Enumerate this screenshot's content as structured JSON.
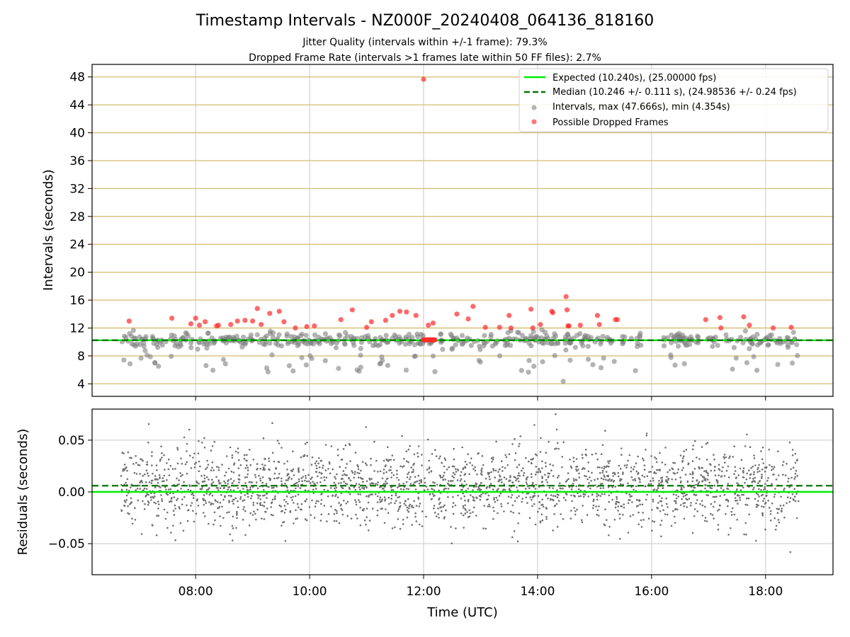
{
  "title": "Timestamp Intervals - NZ000F_20240408_064136_818160",
  "subtitle_lines": [
    "Jitter Quality (intervals within +/-1 frame): 79.3%",
    "Dropped Frame Rate (intervals >1 frames late within 50 FF files): 2.7%"
  ],
  "colors": {
    "expected": "#00ee00",
    "median": "#007700",
    "intervals": "#808080",
    "dropped": "#ff2a2a",
    "grid_y_top": "#d4bb70",
    "grid": "#c8c8c8",
    "residual": "#707070"
  },
  "chart_data": [
    {
      "type": "scatter",
      "name": "intervals",
      "xlabel": "",
      "ylabel": "Intervals (seconds)",
      "xlim": [
        "06:11",
        "19:11"
      ],
      "ylim": [
        2.2,
        49.8
      ],
      "x_ticks": [
        "08:00",
        "10:00",
        "12:00",
        "14:00",
        "16:00",
        "18:00"
      ],
      "y_ticks": [
        4,
        8,
        12,
        16,
        20,
        24,
        28,
        32,
        36,
        40,
        44,
        48
      ],
      "y_tick_labels": [
        "4",
        "8",
        "12",
        "16",
        "20",
        "24",
        "28",
        "32",
        "36",
        "40",
        "44",
        "48"
      ],
      "x_range_data": [
        "06:41",
        "18:35"
      ],
      "grid": true,
      "legend_position": "top-right",
      "legend": [
        "Expected (10.240s), (25.00000 fps)",
        "Median (10.246 +/- 0.111 s), (24.98536 +/- 0.24 fps)",
        "Intervals, max (47.666s), min (4.354s)",
        "Possible Dropped Frames"
      ],
      "expected_value": 10.24,
      "median_value": 10.246,
      "interval_max": 47.666,
      "interval_min": 4.354,
      "dropped_frames": [
        {
          "x": "06:50",
          "y": 13.0
        },
        {
          "x": "07:35",
          "y": 13.4
        },
        {
          "x": "07:55",
          "y": 12.6
        },
        {
          "x": "08:00",
          "y": 13.4
        },
        {
          "x": "08:04",
          "y": 12.4
        },
        {
          "x": "08:10",
          "y": 12.9
        },
        {
          "x": "08:22",
          "y": 12.3
        },
        {
          "x": "08:24",
          "y": 12.4
        },
        {
          "x": "08:37",
          "y": 12.5
        },
        {
          "x": "08:44",
          "y": 13.0
        },
        {
          "x": "08:52",
          "y": 13.1
        },
        {
          "x": "09:00",
          "y": 13.0
        },
        {
          "x": "09:05",
          "y": 14.8
        },
        {
          "x": "09:09",
          "y": 12.5
        },
        {
          "x": "09:18",
          "y": 14.1
        },
        {
          "x": "09:28",
          "y": 14.4
        },
        {
          "x": "09:33",
          "y": 12.9
        },
        {
          "x": "09:45",
          "y": 12.0
        },
        {
          "x": "09:57",
          "y": 12.2
        },
        {
          "x": "10:05",
          "y": 12.3
        },
        {
          "x": "10:33",
          "y": 13.2
        },
        {
          "x": "10:45",
          "y": 14.6
        },
        {
          "x": "11:00",
          "y": 12.1
        },
        {
          "x": "11:05",
          "y": 12.9
        },
        {
          "x": "11:20",
          "y": 13.1
        },
        {
          "x": "11:27",
          "y": 13.8
        },
        {
          "x": "11:35",
          "y": 14.4
        },
        {
          "x": "11:42",
          "y": 14.3
        },
        {
          "x": "11:52",
          "y": 13.8
        },
        {
          "x": "12:00",
          "y": 47.67
        },
        {
          "x": "12:05",
          "y": 12.4
        },
        {
          "x": "12:10",
          "y": 12.7
        },
        {
          "x": "12:35",
          "y": 14.0
        },
        {
          "x": "12:47",
          "y": 13.3
        },
        {
          "x": "12:52",
          "y": 15.1
        },
        {
          "x": "13:05",
          "y": 12.1
        },
        {
          "x": "13:20",
          "y": 12.1
        },
        {
          "x": "13:30",
          "y": 13.8
        },
        {
          "x": "13:32",
          "y": 12.0
        },
        {
          "x": "13:53",
          "y": 14.7
        },
        {
          "x": "13:55",
          "y": 12.0
        },
        {
          "x": "14:03",
          "y": 12.5
        },
        {
          "x": "14:15",
          "y": 14.4
        },
        {
          "x": "14:16",
          "y": 14.2
        },
        {
          "x": "14:30",
          "y": 16.5
        },
        {
          "x": "14:31",
          "y": 14.6
        },
        {
          "x": "14:32",
          "y": 12.3
        },
        {
          "x": "14:33",
          "y": 12.3
        },
        {
          "x": "14:45",
          "y": 12.4
        },
        {
          "x": "15:03",
          "y": 13.8
        },
        {
          "x": "15:05",
          "y": 12.5
        },
        {
          "x": "15:22",
          "y": 13.2
        },
        {
          "x": "15:24",
          "y": 13.2
        },
        {
          "x": "16:57",
          "y": 13.2
        },
        {
          "x": "17:12",
          "y": 13.5
        },
        {
          "x": "17:13",
          "y": 12.0
        },
        {
          "x": "17:37",
          "y": 13.6
        },
        {
          "x": "17:43",
          "y": 12.4
        },
        {
          "x": "18:08",
          "y": 12.0
        },
        {
          "x": "18:27",
          "y": 12.1
        }
      ],
      "dropped_cluster": {
        "x_from": "12:00",
        "x_to": "12:12",
        "y": 10.3
      }
    },
    {
      "type": "scatter",
      "name": "residuals",
      "xlabel": "Time (UTC)",
      "ylabel": "Residuals (seconds)",
      "xlim": [
        "06:11",
        "19:11"
      ],
      "ylim": [
        -0.08,
        0.08
      ],
      "x_ticks": [
        "08:00",
        "10:00",
        "12:00",
        "14:00",
        "16:00",
        "18:00"
      ],
      "y_ticks": [
        -0.05,
        0.0,
        0.05
      ],
      "y_tick_labels": [
        "−0.05",
        "0.00",
        "0.05"
      ],
      "grid": true,
      "expected_residual": 0.0,
      "median_residual": 0.006,
      "residual_spread": 0.03
    }
  ]
}
